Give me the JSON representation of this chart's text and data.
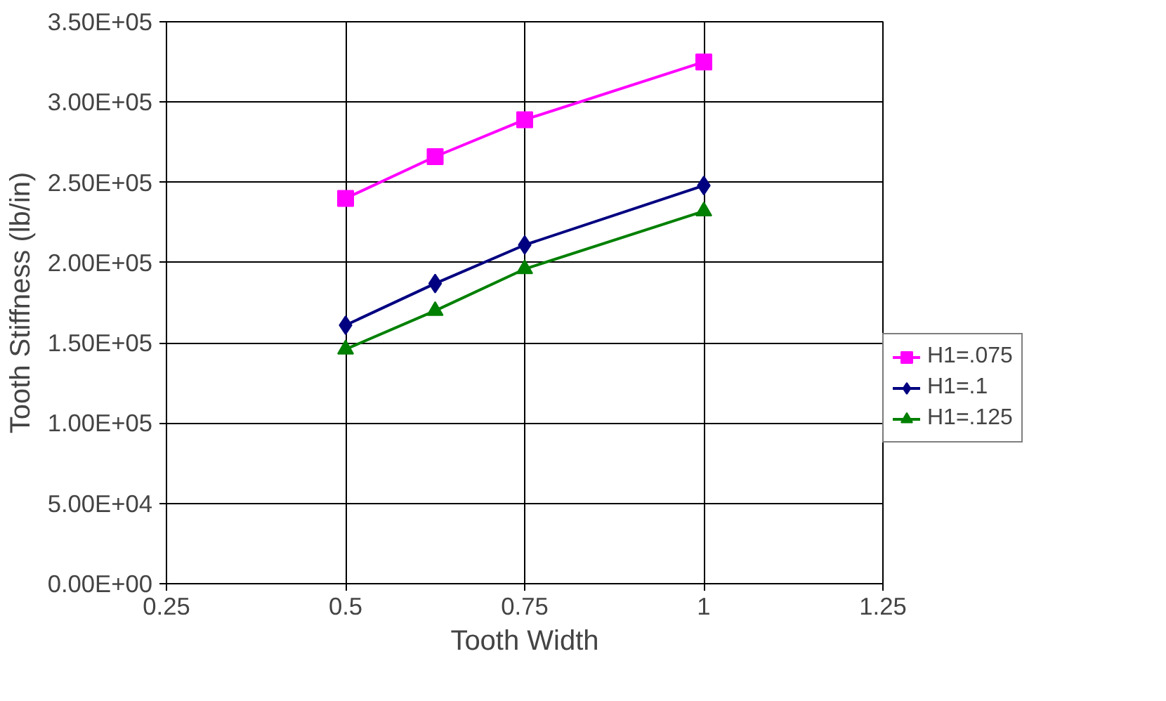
{
  "chart_data": {
    "type": "line",
    "xlabel": "Tooth Width",
    "ylabel": "Tooth Stiffness (lb/in)",
    "xlim": [
      0.25,
      1.25
    ],
    "xticks": [
      0.25,
      0.5,
      0.75,
      {
        "value": 1,
        "label": "1"
      },
      1.25
    ],
    "ylim": [
      0,
      350000
    ],
    "yticks": [
      {
        "value": 0,
        "label": "0.00E+00"
      },
      {
        "value": 50000,
        "label": "5.00E+04"
      },
      {
        "value": 100000,
        "label": "1.00E+05"
      },
      {
        "value": 150000,
        "label": "1.50E+05"
      },
      {
        "value": 200000,
        "label": "2.00E+05"
      },
      {
        "value": 250000,
        "label": "2.50E+05"
      },
      {
        "value": 300000,
        "label": "3.00E+05"
      },
      {
        "value": 350000,
        "label": "3.50E+05"
      }
    ],
    "x": [
      0.5,
      0.625,
      0.75,
      1
    ],
    "series": [
      {
        "name": "H1=.075",
        "color": "#ff00ff",
        "marker": "square",
        "values": [
          240000,
          266000,
          289000,
          325000
        ]
      },
      {
        "name": "H1=.1",
        "color": "#000080",
        "marker": "diamond",
        "values": [
          161000,
          187000,
          211000,
          248000
        ]
      },
      {
        "name": "H1=.125",
        "color": "#008000",
        "marker": "triangle",
        "values": [
          146000,
          170000,
          196000,
          232000
        ]
      }
    ],
    "grid": true,
    "legend": "right",
    "line_style": "solid"
  }
}
